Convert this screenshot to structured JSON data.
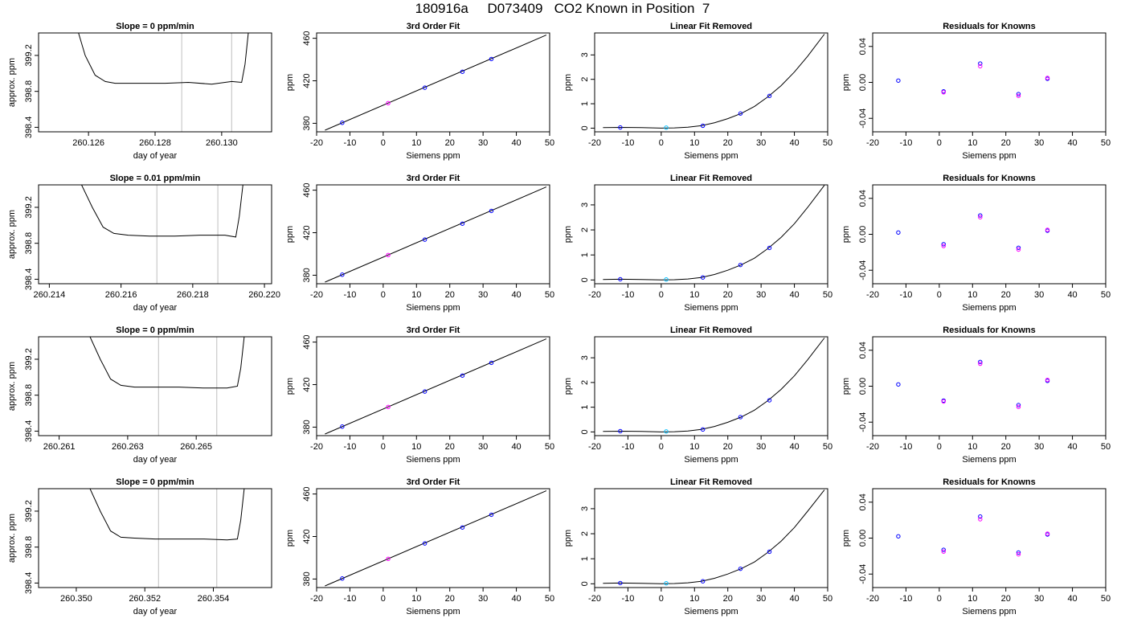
{
  "title": "180916a     D073409   CO2 Known in Position  7",
  "colors": {
    "axis": "#000000",
    "gridline": "#bebebe",
    "point_main": "#0000ff",
    "point_alt": "#ff00ff",
    "point_cyan": "#00bfff",
    "curve": "#000000"
  },
  "chart_data": [
    {
      "type": "line",
      "row": 1,
      "title": "Slope =  0  ppm/min",
      "xlabel": "day of year",
      "ylabel": "approx. ppm",
      "xlim": [
        260.1245,
        260.1315
      ],
      "ylim": [
        398.35,
        399.45
      ],
      "xticks": [
        260.126,
        260.128,
        260.13
      ],
      "xtick_labels": [
        "260.126",
        "260.128",
        "260.130"
      ],
      "yticks": [
        398.4,
        398.8,
        399.2
      ],
      "ytick_labels": [
        "398.4",
        "398.8",
        "399.2"
      ],
      "vlines": [
        260.1288,
        260.1303
      ],
      "series": [
        {
          "x": [
            260.1257,
            260.1259,
            260.1262,
            260.1265,
            260.1268,
            260.1275,
            260.1283,
            260.129,
            260.1297,
            260.1303,
            260.1306,
            260.1307,
            260.1308
          ],
          "y": [
            399.45,
            399.2,
            398.98,
            398.91,
            398.89,
            398.89,
            398.89,
            398.9,
            398.88,
            398.91,
            398.9,
            399.1,
            399.45
          ]
        }
      ]
    },
    {
      "type": "line",
      "row": 2,
      "title": "Slope =  0.01  ppm/min",
      "xlabel": "day of year",
      "ylabel": "approx. ppm",
      "xlim": [
        260.2137,
        260.2202
      ],
      "ylim": [
        398.35,
        399.45
      ],
      "xticks": [
        260.214,
        260.216,
        260.218,
        260.22
      ],
      "xtick_labels": [
        "260.214",
        "260.216",
        "260.218",
        "260.220"
      ],
      "yticks": [
        398.4,
        398.8,
        399.2
      ],
      "ytick_labels": [
        "398.4",
        "398.8",
        "399.2"
      ],
      "vlines": [
        260.217,
        260.2187
      ],
      "series": [
        {
          "x": [
            260.2149,
            260.2152,
            260.2155,
            260.2158,
            260.2162,
            260.2168,
            260.2175,
            260.2182,
            260.2189,
            260.2192,
            260.2193,
            260.2194
          ],
          "y": [
            399.45,
            399.2,
            398.98,
            398.91,
            398.89,
            398.88,
            398.88,
            398.89,
            398.89,
            398.87,
            399.1,
            399.45
          ]
        }
      ]
    },
    {
      "type": "line",
      "row": 3,
      "title": "Slope =  0  ppm/min",
      "xlabel": "day of year",
      "ylabel": "approx. ppm",
      "xlim": [
        260.2604,
        260.2672
      ],
      "ylim": [
        398.35,
        399.45
      ],
      "xticks": [
        260.261,
        260.263,
        260.265
      ],
      "xtick_labels": [
        "260.261",
        "260.263",
        "260.265"
      ],
      "yticks": [
        398.4,
        398.8,
        399.2
      ],
      "ytick_labels": [
        "398.4",
        "398.8",
        "399.2"
      ],
      "vlines": [
        260.2639,
        260.2656
      ],
      "series": [
        {
          "x": [
            260.2619,
            260.2622,
            260.2625,
            260.2628,
            260.2632,
            260.2638,
            260.2645,
            260.2652,
            260.2659,
            260.2662,
            260.2663,
            260.2664
          ],
          "y": [
            399.45,
            399.2,
            398.98,
            398.91,
            398.89,
            398.89,
            398.89,
            398.88,
            398.88,
            398.9,
            399.1,
            399.45
          ]
        }
      ]
    },
    {
      "type": "line",
      "row": 4,
      "title": "Slope =  0  ppm/min",
      "xlabel": "day of year",
      "ylabel": "approx. ppm",
      "xlim": [
        260.3489,
        260.3557
      ],
      "ylim": [
        398.35,
        399.45
      ],
      "xticks": [
        260.35,
        260.352,
        260.354
      ],
      "xtick_labels": [
        "260.350",
        "260.352",
        "260.354"
      ],
      "yticks": [
        398.4,
        398.8,
        399.2
      ],
      "ytick_labels": [
        "398.4",
        "398.8",
        "399.2"
      ],
      "vlines": [
        260.3524,
        260.3541
      ],
      "series": [
        {
          "x": [
            260.3504,
            260.3507,
            260.351,
            260.3513,
            260.3517,
            260.3523,
            260.353,
            260.3537,
            260.3544,
            260.3547,
            260.3548,
            260.3549
          ],
          "y": [
            399.45,
            399.2,
            398.98,
            398.91,
            398.9,
            398.89,
            398.89,
            398.89,
            398.88,
            398.89,
            399.1,
            399.45
          ]
        }
      ]
    },
    {
      "type": "scatter",
      "row": 1,
      "title": "3rd Order Fit",
      "xlabel": "Siemens ppm",
      "ylabel": "ppm",
      "xlim": [
        -20,
        50
      ],
      "ylim": [
        372,
        465
      ],
      "xticks": [
        -20,
        -10,
        0,
        10,
        20,
        30,
        40,
        50
      ],
      "yticks": [
        380,
        420,
        460
      ],
      "curve": {
        "x": [
          -17.5,
          49
        ],
        "y": [
          373.5,
          463
        ]
      },
      "points": {
        "x": [
          -12.3,
          1.5,
          12.5,
          23.8,
          32.5
        ],
        "y": [
          380.5,
          399,
          413.5,
          428.5,
          440.5
        ],
        "colors": [
          "point_main",
          "point_alt",
          "point_main",
          "point_main",
          "point_main"
        ]
      }
    },
    {
      "type": "scatter",
      "row": 2,
      "title": "3rd Order Fit",
      "xlabel": "Siemens ppm",
      "ylabel": "ppm",
      "xlim": [
        -20,
        50
      ],
      "ylim": [
        372,
        465
      ],
      "xticks": [
        -20,
        -10,
        0,
        10,
        20,
        30,
        40,
        50
      ],
      "yticks": [
        380,
        420,
        460
      ],
      "curve": {
        "x": [
          -17.5,
          49
        ],
        "y": [
          373.5,
          463
        ]
      },
      "points": {
        "x": [
          -12.3,
          1.5,
          12.5,
          23.8,
          32.5
        ],
        "y": [
          380.5,
          399,
          413.5,
          428.5,
          440.5
        ],
        "colors": [
          "point_main",
          "point_alt",
          "point_main",
          "point_main",
          "point_main"
        ]
      }
    },
    {
      "type": "scatter",
      "row": 3,
      "title": "3rd Order Fit",
      "xlabel": "Siemens ppm",
      "ylabel": "ppm",
      "xlim": [
        -20,
        50
      ],
      "ylim": [
        372,
        465
      ],
      "xticks": [
        -20,
        -10,
        0,
        10,
        20,
        30,
        40,
        50
      ],
      "yticks": [
        380,
        420,
        460
      ],
      "curve": {
        "x": [
          -17.5,
          49
        ],
        "y": [
          373.5,
          463
        ]
      },
      "points": {
        "x": [
          -12.3,
          1.5,
          12.5,
          23.8,
          32.5
        ],
        "y": [
          380.5,
          399,
          413.5,
          428.5,
          440.5
        ],
        "colors": [
          "point_main",
          "point_alt",
          "point_main",
          "point_main",
          "point_main"
        ]
      }
    },
    {
      "type": "scatter",
      "row": 4,
      "title": "3rd Order Fit",
      "xlabel": "Siemens ppm",
      "ylabel": "ppm",
      "xlim": [
        -20,
        50
      ],
      "ylim": [
        372,
        465
      ],
      "xticks": [
        -20,
        -10,
        0,
        10,
        20,
        30,
        40,
        50
      ],
      "yticks": [
        380,
        420,
        460
      ],
      "curve": {
        "x": [
          -17.5,
          49
        ],
        "y": [
          373.5,
          463
        ]
      },
      "points": {
        "x": [
          -12.3,
          1.5,
          12.5,
          23.8,
          32.5
        ],
        "y": [
          380.5,
          399,
          413.5,
          428.5,
          440.5
        ],
        "colors": [
          "point_main",
          "point_alt",
          "point_main",
          "point_main",
          "point_main"
        ]
      }
    },
    {
      "type": "scatter",
      "row": 1,
      "title": "Linear Fit Removed",
      "xlabel": "Siemens ppm",
      "ylabel": "ppm",
      "xlim": [
        -20,
        50
      ],
      "ylim": [
        -0.15,
        3.9
      ],
      "xticks": [
        -20,
        -10,
        0,
        10,
        20,
        30,
        40,
        50
      ],
      "yticks": [
        0,
        1,
        2,
        3
      ],
      "curve": {
        "x": [
          -17.5,
          -12,
          -6,
          0,
          4,
          8,
          12,
          16,
          20,
          24,
          28,
          32,
          36,
          40,
          44,
          49
        ],
        "y": [
          0.02,
          0.03,
          0.02,
          0.0,
          0.01,
          0.04,
          0.1,
          0.22,
          0.39,
          0.6,
          0.89,
          1.28,
          1.74,
          2.3,
          2.95,
          3.85
        ]
      },
      "points": {
        "x": [
          -12.3,
          1.5,
          12.5,
          23.8,
          32.5
        ],
        "y": [
          0.03,
          0.02,
          0.1,
          0.6,
          1.32
        ],
        "colors": [
          "point_main",
          "point_cyan",
          "point_main",
          "point_main",
          "point_main"
        ]
      }
    },
    {
      "type": "scatter",
      "row": 2,
      "title": "Linear Fit Removed",
      "xlabel": "Siemens ppm",
      "ylabel": "ppm",
      "xlim": [
        -20,
        50
      ],
      "ylim": [
        -0.15,
        3.8
      ],
      "xticks": [
        -20,
        -10,
        0,
        10,
        20,
        30,
        40,
        50
      ],
      "yticks": [
        0,
        1,
        2,
        3
      ],
      "curve": {
        "x": [
          -17.5,
          -12,
          -6,
          0,
          4,
          8,
          12,
          16,
          20,
          24,
          28,
          32,
          36,
          40,
          44,
          49
        ],
        "y": [
          0.02,
          0.03,
          0.02,
          0.0,
          0.01,
          0.04,
          0.1,
          0.22,
          0.39,
          0.6,
          0.87,
          1.25,
          1.7,
          2.25,
          2.9,
          3.78
        ]
      },
      "points": {
        "x": [
          -12.3,
          1.5,
          12.5,
          23.8,
          32.5
        ],
        "y": [
          0.03,
          0.02,
          0.1,
          0.6,
          1.28
        ],
        "colors": [
          "point_main",
          "point_cyan",
          "point_main",
          "point_main",
          "point_main"
        ]
      }
    },
    {
      "type": "scatter",
      "row": 3,
      "title": "Linear Fit Removed",
      "xlabel": "Siemens ppm",
      "ylabel": "ppm",
      "xlim": [
        -20,
        50
      ],
      "ylim": [
        -0.15,
        3.85
      ],
      "xticks": [
        -20,
        -10,
        0,
        10,
        20,
        30,
        40,
        50
      ],
      "yticks": [
        0,
        1,
        2,
        3
      ],
      "curve": {
        "x": [
          -17.5,
          -12,
          -6,
          0,
          4,
          8,
          12,
          16,
          20,
          24,
          28,
          32,
          36,
          40,
          44,
          49
        ],
        "y": [
          0.02,
          0.03,
          0.02,
          0.0,
          0.01,
          0.04,
          0.1,
          0.22,
          0.39,
          0.6,
          0.88,
          1.26,
          1.72,
          2.27,
          2.92,
          3.8
        ]
      },
      "points": {
        "x": [
          -12.3,
          1.5,
          12.5,
          23.8,
          32.5
        ],
        "y": [
          0.03,
          0.02,
          0.1,
          0.6,
          1.28
        ],
        "colors": [
          "point_main",
          "point_cyan",
          "point_main",
          "point_main",
          "point_main"
        ]
      }
    },
    {
      "type": "scatter",
      "row": 4,
      "title": "Linear Fit Removed",
      "xlabel": "Siemens ppm",
      "ylabel": "ppm",
      "xlim": [
        -20,
        50
      ],
      "ylim": [
        -0.15,
        3.8
      ],
      "xticks": [
        -20,
        -10,
        0,
        10,
        20,
        30,
        40,
        50
      ],
      "yticks": [
        0,
        1,
        2,
        3
      ],
      "curve": {
        "x": [
          -17.5,
          -12,
          -6,
          0,
          4,
          8,
          12,
          16,
          20,
          24,
          28,
          32,
          36,
          40,
          44,
          49
        ],
        "y": [
          0.02,
          0.03,
          0.02,
          0.0,
          0.01,
          0.04,
          0.1,
          0.22,
          0.39,
          0.6,
          0.87,
          1.25,
          1.7,
          2.25,
          2.9,
          3.75
        ]
      },
      "points": {
        "x": [
          -12.3,
          1.5,
          12.5,
          23.8,
          32.5
        ],
        "y": [
          0.03,
          0.02,
          0.1,
          0.6,
          1.28
        ],
        "colors": [
          "point_main",
          "point_cyan",
          "point_main",
          "point_main",
          "point_main"
        ]
      }
    },
    {
      "type": "scatter",
      "row": 1,
      "title": "Residuals for Knowns",
      "xlabel": "Siemens ppm",
      "ylabel": "ppm",
      "xlim": [
        -20,
        50
      ],
      "ylim": [
        -0.055,
        0.055
      ],
      "xticks": [
        -20,
        -10,
        0,
        10,
        20,
        30,
        40,
        50
      ],
      "yticks": [
        -0.04,
        0.0,
        0.04
      ],
      "ytick_labels": [
        "-0.04",
        "0.00",
        "0.04"
      ],
      "points": {
        "x": [
          -12.3,
          1.3,
          1.3,
          12.3,
          12.3,
          23.8,
          23.8,
          32.5,
          32.5
        ],
        "y": [
          0.002,
          -0.01,
          -0.011,
          0.021,
          0.018,
          -0.013,
          -0.015,
          0.004,
          0.005
        ],
        "colors": [
          "point_main",
          "point_main",
          "point_alt",
          "point_main",
          "point_alt",
          "point_main",
          "point_alt",
          "point_main",
          "point_alt"
        ]
      }
    },
    {
      "type": "scatter",
      "row": 2,
      "title": "Residuals for Knowns",
      "xlabel": "Siemens ppm",
      "ylabel": "ppm",
      "xlim": [
        -20,
        50
      ],
      "ylim": [
        -0.055,
        0.055
      ],
      "xticks": [
        -20,
        -10,
        0,
        10,
        20,
        30,
        40,
        50
      ],
      "yticks": [
        -0.04,
        0.0,
        0.04
      ],
      "ytick_labels": [
        "-0.04",
        "0.00",
        "0.04"
      ],
      "points": {
        "x": [
          -12.3,
          1.3,
          1.3,
          12.3,
          12.3,
          23.8,
          23.8,
          32.5,
          32.5
        ],
        "y": [
          0.002,
          -0.011,
          -0.013,
          0.021,
          0.019,
          -0.015,
          -0.017,
          0.004,
          0.005
        ],
        "colors": [
          "point_main",
          "point_main",
          "point_alt",
          "point_main",
          "point_alt",
          "point_main",
          "point_alt",
          "point_main",
          "point_alt"
        ]
      }
    },
    {
      "type": "scatter",
      "row": 3,
      "title": "Residuals for Knowns",
      "xlabel": "Siemens ppm",
      "ylabel": "ppm",
      "xlim": [
        -20,
        50
      ],
      "ylim": [
        -0.055,
        0.055
      ],
      "xticks": [
        -20,
        -10,
        0,
        10,
        20,
        30,
        40,
        50
      ],
      "yticks": [
        -0.04,
        0.0,
        0.04
      ],
      "ytick_labels": [
        "-0.04",
        "0.00",
        "0.04"
      ],
      "points": {
        "x": [
          -12.3,
          1.3,
          1.3,
          12.3,
          12.3,
          23.8,
          23.8,
          32.5,
          32.5
        ],
        "y": [
          0.002,
          -0.016,
          -0.017,
          0.027,
          0.025,
          -0.021,
          -0.023,
          0.006,
          0.007
        ],
        "colors": [
          "point_main",
          "point_main",
          "point_alt",
          "point_main",
          "point_alt",
          "point_main",
          "point_alt",
          "point_main",
          "point_alt"
        ]
      }
    },
    {
      "type": "scatter",
      "row": 4,
      "title": "Residuals for Knowns",
      "xlabel": "Siemens ppm",
      "ylabel": "ppm",
      "xlim": [
        -20,
        50
      ],
      "ylim": [
        -0.055,
        0.055
      ],
      "xticks": [
        -20,
        -10,
        0,
        10,
        20,
        30,
        40,
        50
      ],
      "yticks": [
        -0.04,
        0.0,
        0.04
      ],
      "ytick_labels": [
        "-0.04",
        "0.00",
        "0.04"
      ],
      "points": {
        "x": [
          -12.3,
          1.3,
          1.3,
          12.3,
          12.3,
          23.8,
          23.8,
          32.5,
          32.5
        ],
        "y": [
          0.002,
          -0.013,
          -0.015,
          0.024,
          0.021,
          -0.016,
          -0.018,
          0.004,
          0.005
        ],
        "colors": [
          "point_main",
          "point_main",
          "point_alt",
          "point_main",
          "point_alt",
          "point_main",
          "point_alt",
          "point_main",
          "point_alt"
        ]
      }
    }
  ]
}
